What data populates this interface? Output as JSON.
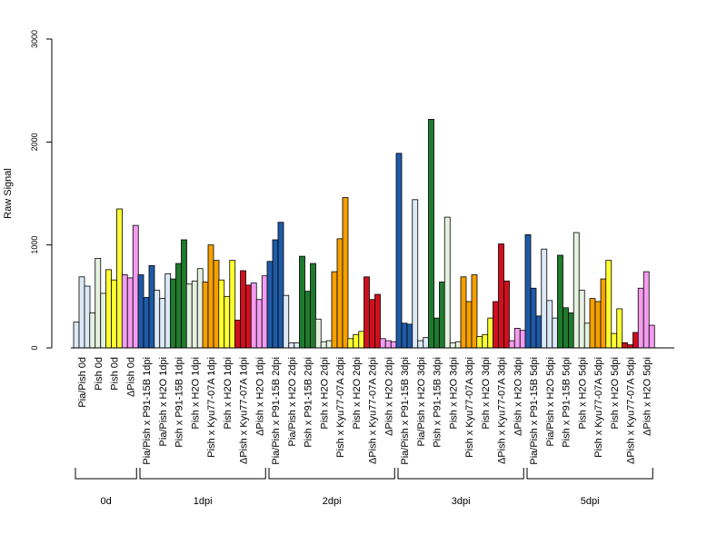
{
  "chart_data": {
    "type": "bar",
    "title": "",
    "xlabel": "",
    "ylabel": "Raw Signal",
    "ylim": [
      0,
      3000
    ],
    "yticks": [
      0,
      1000,
      2000,
      3000
    ],
    "grid": false,
    "legend": "none",
    "colors": {
      "light_blue": "#dce9f7",
      "blue": "#1f5aa6",
      "light_green": "#e6f2e0",
      "green": "#1f7a2e",
      "yellow": "#ffff33",
      "orange": "#f5a000",
      "red": "#d0101e",
      "pink": "#f49cf0"
    },
    "groups": [
      {
        "label": "0d",
        "categories": [
          {
            "label": "Pia/Pish 0d",
            "color": "light_blue",
            "values": [
              250,
              690,
              600
            ]
          },
          {
            "label": "Pish 0d",
            "color": "light_green",
            "values": [
              340,
              870,
              530
            ]
          },
          {
            "label": "Pish 0d",
            "color": "yellow",
            "values": [
              760,
              660,
              1350
            ]
          },
          {
            "label": "ΔPish 0d",
            "color": "pink",
            "values": [
              710,
              680,
              1190
            ]
          }
        ]
      },
      {
        "label": "1dpi",
        "categories": [
          {
            "label": "Pia/Pish x P91-15B 1dpi",
            "color": "blue",
            "values": [
              710,
              490,
              800
            ]
          },
          {
            "label": "Pia/Pish x H2O 1dpi",
            "color": "light_blue",
            "values": [
              560,
              480,
              720
            ]
          },
          {
            "label": "Pish x P91-15B 1dpi",
            "color": "green",
            "values": [
              670,
              820,
              1050
            ]
          },
          {
            "label": "Pish x H2O 1dpi",
            "color": "light_green",
            "values": [
              620,
              650,
              770
            ]
          },
          {
            "label": "Pish x Kyu77-07A 1dpi",
            "color": "orange",
            "values": [
              640,
              1000,
              850
            ]
          },
          {
            "label": "Pish x H2O 1dpi",
            "color": "yellow",
            "values": [
              660,
              500,
              850
            ]
          },
          {
            "label": "ΔPish x Kyu77-07A 1dpi",
            "color": "red",
            "values": [
              270,
              750,
              610
            ]
          },
          {
            "label": "ΔPish x H2O 1dpi",
            "color": "pink",
            "values": [
              630,
              470,
              700
            ]
          }
        ]
      },
      {
        "label": "2dpi",
        "categories": [
          {
            "label": "Pia/Pish x P91-15B 2dpi",
            "color": "blue",
            "values": [
              840,
              1050,
              1220
            ]
          },
          {
            "label": "Pia/Pish x H2O 2dpi",
            "color": "light_blue",
            "values": [
              510,
              50,
              50
            ]
          },
          {
            "label": "Pish x P91-15B 2dpi",
            "color": "green",
            "values": [
              890,
              550,
              820
            ]
          },
          {
            "label": "Pish x H2O 2dpi",
            "color": "light_green",
            "values": [
              280,
              60,
              70
            ]
          },
          {
            "label": "Pish x Kyu77-07A 2dpi",
            "color": "orange",
            "values": [
              740,
              1060,
              1460
            ]
          },
          {
            "label": "Pish x H2O 2dpi",
            "color": "yellow",
            "values": [
              90,
              130,
              160
            ]
          },
          {
            "label": "ΔPish x Kyu77-07A 2dpi",
            "color": "red",
            "values": [
              690,
              470,
              520
            ]
          },
          {
            "label": "ΔPish x H2O 2dpi",
            "color": "pink",
            "values": [
              90,
              70,
              60
            ]
          }
        ]
      },
      {
        "label": "3dpi",
        "categories": [
          {
            "label": "Pia/Pish x P91-15B 3dpi",
            "color": "blue",
            "values": [
              1890,
              240,
              230
            ]
          },
          {
            "label": "Pia/Pish x H2O 3dpi",
            "color": "light_blue",
            "values": [
              1440,
              70,
              100
            ]
          },
          {
            "label": "Pish x P91-15B 3dpi",
            "color": "green",
            "values": [
              2220,
              290,
              640
            ]
          },
          {
            "label": "Pish x H2O 3dpi",
            "color": "light_green",
            "values": [
              1270,
              50,
              60
            ]
          },
          {
            "label": "Pish x Kyu77-07A 3dpi",
            "color": "orange",
            "values": [
              690,
              450,
              710
            ]
          },
          {
            "label": "Pish x H2O 3dpi",
            "color": "yellow",
            "values": [
              110,
              130,
              290
            ]
          },
          {
            "label": "ΔPish x Kyu77-07A 3dpi",
            "color": "red",
            "values": [
              450,
              1010,
              650
            ]
          },
          {
            "label": "ΔPish x H2O 3dpi",
            "color": "pink",
            "values": [
              70,
              190,
              170
            ]
          }
        ]
      },
      {
        "label": "5dpi",
        "categories": [
          {
            "label": "Pia/Pish x P91-15B 5dpi",
            "color": "blue",
            "values": [
              1100,
              580,
              310
            ]
          },
          {
            "label": "Pia/Pish x H2O 5dpi",
            "color": "light_blue",
            "values": [
              960,
              460,
              290
            ]
          },
          {
            "label": "Pish x P91-15B 5dpi",
            "color": "green",
            "values": [
              900,
              390,
              340
            ]
          },
          {
            "label": "Pish x H2O 5dpi",
            "color": "light_green",
            "values": [
              1120,
              560,
              240
            ]
          },
          {
            "label": "Pish x Kyu77-07A 5dpi",
            "color": "orange",
            "values": [
              480,
              450,
              670
            ]
          },
          {
            "label": "Pish x H2O 5dpi",
            "color": "yellow",
            "values": [
              850,
              140,
              380
            ]
          },
          {
            "label": "ΔPish x Kyu77-07A 5dpi",
            "color": "red",
            "values": [
              50,
              30,
              150
            ]
          },
          {
            "label": "ΔPish x H2O 5dpi",
            "color": "pink",
            "values": [
              580,
              740,
              220
            ]
          }
        ]
      }
    ]
  }
}
